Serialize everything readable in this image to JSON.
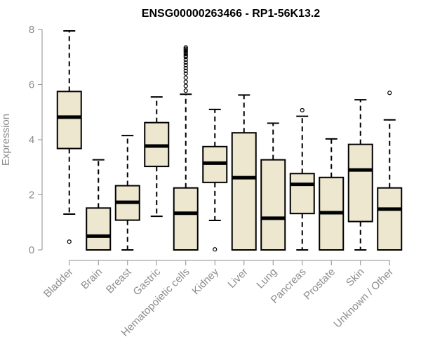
{
  "chart_data": {
    "type": "boxplot",
    "title": "ENSG00000263466 - RP1-56K13.2",
    "xlabel": "",
    "ylabel": "Expression",
    "ylim": [
      0,
      8
    ],
    "yticks": [
      0,
      2,
      4,
      6,
      8
    ],
    "box_color": "#ede7cf",
    "categories": [
      "Bladder",
      "Brain",
      "Breast",
      "Gastric",
      "Hematopoietic cells",
      "Kidney",
      "Liver",
      "Lung",
      "Pancreas",
      "Prostate",
      "Skin",
      "Unknown / Other"
    ],
    "boxes": [
      {
        "min": 1.3,
        "q1": 3.68,
        "median": 4.82,
        "q3": 5.75,
        "max": 7.95,
        "outliers": [
          0.3
        ]
      },
      {
        "min": 0.0,
        "q1": 0.0,
        "median": 0.5,
        "q3": 1.52,
        "max": 3.27,
        "outliers": []
      },
      {
        "min": 0.0,
        "q1": 1.08,
        "median": 1.73,
        "q3": 2.33,
        "max": 4.15,
        "outliers": []
      },
      {
        "min": 1.22,
        "q1": 3.03,
        "median": 3.77,
        "q3": 4.62,
        "max": 5.55,
        "outliers": []
      },
      {
        "min": 0.0,
        "q1": 0.0,
        "median": 1.33,
        "q3": 2.25,
        "max": 5.65,
        "outliers": [
          5.78,
          5.95,
          6.1,
          6.25,
          6.4,
          6.5,
          6.6,
          6.7,
          6.8,
          6.9,
          7.0,
          7.05,
          7.1,
          7.15,
          7.2,
          7.25,
          7.3,
          7.35
        ]
      },
      {
        "min": 1.07,
        "q1": 2.45,
        "median": 3.15,
        "q3": 3.75,
        "max": 5.1,
        "outliers": [
          0.02
        ]
      },
      {
        "min": 0.0,
        "q1": 0.0,
        "median": 2.62,
        "q3": 4.25,
        "max": 5.62,
        "outliers": []
      },
      {
        "min": 0.0,
        "q1": 0.0,
        "median": 1.15,
        "q3": 3.27,
        "max": 4.6,
        "outliers": []
      },
      {
        "min": 0.0,
        "q1": 1.32,
        "median": 2.38,
        "q3": 2.77,
        "max": 4.85,
        "outliers": [
          5.07
        ]
      },
      {
        "min": 0.0,
        "q1": 0.0,
        "median": 1.35,
        "q3": 2.63,
        "max": 4.03,
        "outliers": []
      },
      {
        "min": 0.0,
        "q1": 1.03,
        "median": 2.9,
        "q3": 3.83,
        "max": 5.45,
        "outliers": []
      },
      {
        "min": 0.0,
        "q1": 0.0,
        "median": 1.48,
        "q3": 2.25,
        "max": 4.72,
        "outliers": [
          5.7
        ]
      }
    ]
  }
}
